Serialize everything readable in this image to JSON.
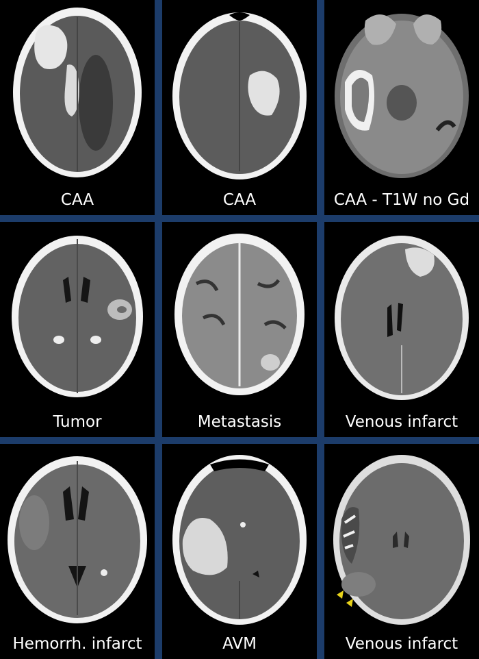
{
  "panels": [
    {
      "label": "CAA"
    },
    {
      "label": "CAA"
    },
    {
      "label": "CAA - T1W no Gd"
    },
    {
      "label": "Tumor"
    },
    {
      "label": "Metastasis"
    },
    {
      "label": "Venous infarct"
    },
    {
      "label": "Hemorrh. infarct"
    },
    {
      "label": "AVM"
    },
    {
      "label": "Venous infarct"
    }
  ],
  "colors": {
    "background": "#000000",
    "divider": "#1c3c6a",
    "caption": "#ffffff",
    "arrowheads": "#e8d21a"
  }
}
